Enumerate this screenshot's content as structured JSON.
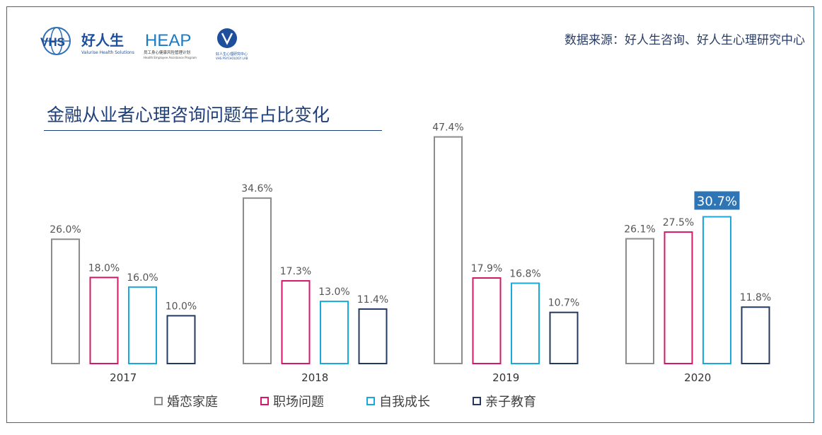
{
  "header": {
    "logo_vhs_text": "VHS",
    "logo_haorensheng_text": "好人生",
    "logo_haorensheng_sub": "Valurise Health Solutions",
    "logo_heap_text": "HEAP",
    "logo_heap_sub": "员工身心健康风险管理计划",
    "logo_heap_sub_en": "Health Employee Assistance Program",
    "logo_lab_text": "好人生心理研究中心",
    "logo_lab_sub": "VHS PSYCHOLOGY LAB",
    "source": "数据来源：好人生咨询、好人生心理研究中心"
  },
  "colors": {
    "marriage": "#8c8c8c",
    "workplace": "#d6176b",
    "growth": "#1aa9dc",
    "parenting": "#233a5e",
    "highlight_bg": "#2e75b6"
  },
  "chart_data": {
    "type": "bar",
    "title": "金融从业者心理咨询问题年占比变化",
    "categories": [
      "2017",
      "2018",
      "2019",
      "2020"
    ],
    "series": [
      {
        "name": "婚恋家庭",
        "values": [
          26.0,
          34.6,
          47.4,
          26.1
        ],
        "labels": [
          "26.0%",
          "34.6%",
          "47.4%",
          "26.1%"
        ]
      },
      {
        "name": "职场问题",
        "values": [
          18.0,
          17.3,
          17.9,
          27.5
        ],
        "labels": [
          "18.0%",
          "17.3%",
          "17.9%",
          "27.5%"
        ]
      },
      {
        "name": "自我成长",
        "values": [
          16.0,
          13.0,
          16.8,
          30.7
        ],
        "labels": [
          "16.0%",
          "13.0%",
          "16.8%",
          "30.7%"
        ]
      },
      {
        "name": "亲子教育",
        "values": [
          10.0,
          11.4,
          10.7,
          11.8
        ],
        "labels": [
          "10.0%",
          "11.4%",
          "10.7%",
          "11.8%"
        ]
      }
    ],
    "highlight": {
      "series": 2,
      "category": 3
    },
    "ylim": [
      0,
      50
    ],
    "grid": false,
    "legend": "bottom"
  }
}
